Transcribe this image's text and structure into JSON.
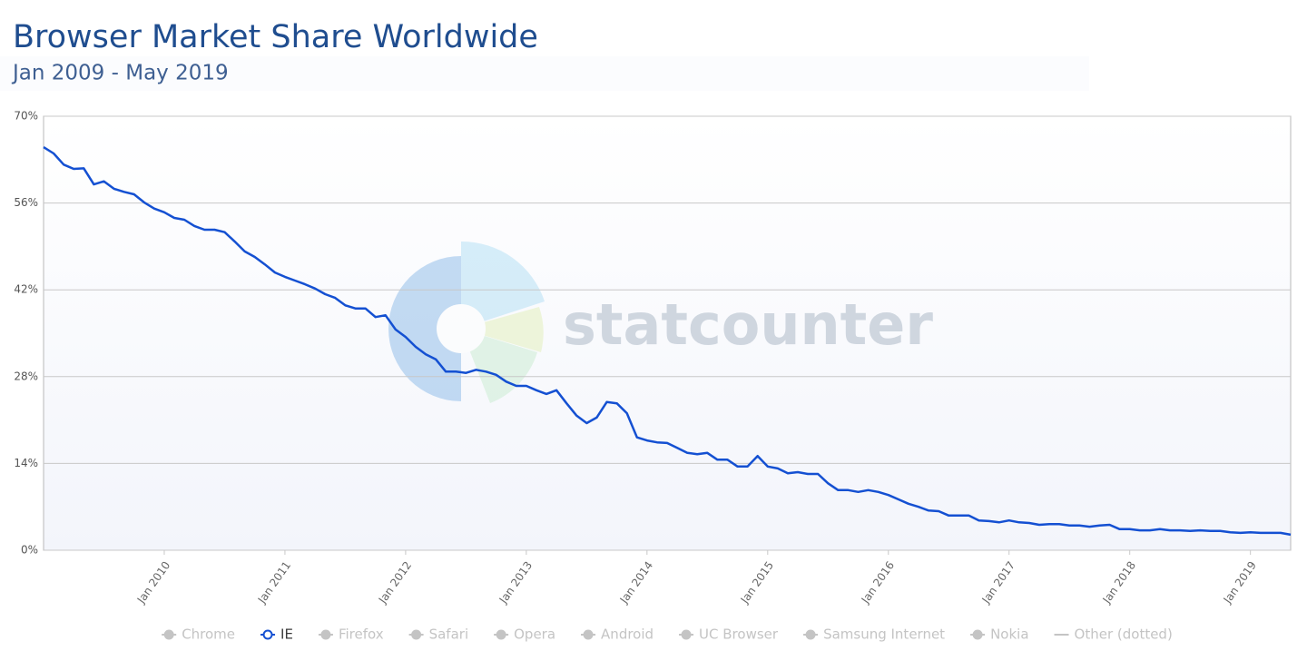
{
  "chart_data": {
    "type": "line",
    "title": "Browser Market Share Worldwide",
    "subtitle": "Jan 2009 - May 2019",
    "watermark": "statcounter",
    "x": [
      "2009-01",
      "2009-02",
      "2009-03",
      "2009-04",
      "2009-05",
      "2009-06",
      "2009-07",
      "2009-08",
      "2009-09",
      "2009-10",
      "2009-11",
      "2009-12",
      "2010-01",
      "2010-02",
      "2010-03",
      "2010-04",
      "2010-05",
      "2010-06",
      "2010-07",
      "2010-08",
      "2010-09",
      "2010-10",
      "2010-11",
      "2010-12",
      "2011-01",
      "2011-02",
      "2011-03",
      "2011-04",
      "2011-05",
      "2011-06",
      "2011-07",
      "2011-08",
      "2011-09",
      "2011-10",
      "2011-11",
      "2011-12",
      "2012-01",
      "2012-02",
      "2012-03",
      "2012-04",
      "2012-05",
      "2012-06",
      "2012-07",
      "2012-08",
      "2012-09",
      "2012-10",
      "2012-11",
      "2012-12",
      "2013-01",
      "2013-02",
      "2013-03",
      "2013-04",
      "2013-05",
      "2013-06",
      "2013-07",
      "2013-08",
      "2013-09",
      "2013-10",
      "2013-11",
      "2013-12",
      "2014-01",
      "2014-02",
      "2014-03",
      "2014-04",
      "2014-05",
      "2014-06",
      "2014-07",
      "2014-08",
      "2014-09",
      "2014-10",
      "2014-11",
      "2014-12",
      "2015-01",
      "2015-02",
      "2015-03",
      "2015-04",
      "2015-05",
      "2015-06",
      "2015-07",
      "2015-08",
      "2015-09",
      "2015-10",
      "2015-11",
      "2015-12",
      "2016-01",
      "2016-02",
      "2016-03",
      "2016-04",
      "2016-05",
      "2016-06",
      "2016-07",
      "2016-08",
      "2016-09",
      "2016-10",
      "2016-11",
      "2016-12",
      "2017-01",
      "2017-02",
      "2017-03",
      "2017-04",
      "2017-05",
      "2017-06",
      "2017-07",
      "2017-08",
      "2017-09",
      "2017-10",
      "2017-11",
      "2017-12",
      "2018-01",
      "2018-02",
      "2018-03",
      "2018-04",
      "2018-05",
      "2018-06",
      "2018-07",
      "2018-08",
      "2018-09",
      "2018-10",
      "2018-11",
      "2018-12",
      "2019-01",
      "2019-02",
      "2019-03",
      "2019-04",
      "2019-05"
    ],
    "series": [
      {
        "name": "Chrome",
        "visible": false
      },
      {
        "name": "IE",
        "visible": true,
        "color": "#1450d2",
        "values": [
          65.0,
          64.0,
          62.2,
          61.5,
          61.6,
          59.0,
          59.5,
          58.3,
          57.8,
          57.4,
          56.1,
          55.1,
          54.5,
          53.6,
          53.3,
          52.3,
          51.7,
          51.7,
          51.3,
          49.8,
          48.2,
          47.3,
          46.1,
          44.8,
          44.1,
          43.5,
          42.9,
          42.2,
          41.3,
          40.7,
          39.5,
          39.0,
          39.0,
          37.6,
          37.9,
          35.6,
          34.4,
          32.8,
          31.6,
          30.8,
          28.8,
          28.8,
          28.6,
          29.1,
          28.8,
          28.3,
          27.2,
          26.5,
          26.5,
          25.8,
          25.2,
          25.8,
          23.7,
          21.7,
          20.5,
          21.4,
          23.9,
          23.7,
          22.1,
          18.2,
          17.7,
          17.4,
          17.3,
          16.5,
          15.7,
          15.5,
          15.7,
          14.6,
          14.6,
          13.5,
          13.5,
          15.2,
          13.5,
          13.2,
          12.4,
          12.6,
          12.3,
          12.3,
          10.8,
          9.7,
          9.7,
          9.4,
          9.7,
          9.4,
          8.9,
          8.2,
          7.5,
          7.0,
          6.4,
          6.3,
          5.6,
          5.6,
          5.6,
          4.8,
          4.7,
          4.5,
          4.8,
          4.5,
          4.4,
          4.1,
          4.2,
          4.2,
          4.0,
          4.0,
          3.8,
          4.0,
          4.1,
          3.4,
          3.4,
          3.2,
          3.2,
          3.4,
          3.2,
          3.2,
          3.1,
          3.2,
          3.1,
          3.1,
          2.9,
          2.8,
          2.9,
          2.8,
          2.8,
          2.8,
          2.5
        ]
      },
      {
        "name": "Firefox",
        "visible": false
      },
      {
        "name": "Safari",
        "visible": false
      },
      {
        "name": "Opera",
        "visible": false
      },
      {
        "name": "Android",
        "visible": false
      },
      {
        "name": "UC Browser",
        "visible": false
      },
      {
        "name": "Samsung Internet",
        "visible": false
      },
      {
        "name": "Nokia",
        "visible": false
      },
      {
        "name": "Other (dotted)",
        "visible": false,
        "legend_symbol": "line"
      }
    ],
    "ylim": [
      0,
      70
    ],
    "yticks": [
      {
        "value": 0,
        "label": "0%"
      },
      {
        "value": 14,
        "label": "14%"
      },
      {
        "value": 28,
        "label": "28%"
      },
      {
        "value": 42,
        "label": "42%"
      },
      {
        "value": 56,
        "label": "56%"
      },
      {
        "value": 70,
        "label": "70%"
      }
    ],
    "xlim": [
      "2009-01",
      "2019-05"
    ],
    "xticks": [
      {
        "value": "2010-01",
        "label": "Jan 2010"
      },
      {
        "value": "2011-01",
        "label": "Jan 2011"
      },
      {
        "value": "2012-01",
        "label": "Jan 2012"
      },
      {
        "value": "2013-01",
        "label": "Jan 2013"
      },
      {
        "value": "2014-01",
        "label": "Jan 2014"
      },
      {
        "value": "2015-01",
        "label": "Jan 2015"
      },
      {
        "value": "2016-01",
        "label": "Jan 2016"
      },
      {
        "value": "2017-01",
        "label": "Jan 2017"
      },
      {
        "value": "2018-01",
        "label": "Jan 2018"
      },
      {
        "value": "2019-01",
        "label": "Jan 2019"
      }
    ],
    "grid": true
  }
}
